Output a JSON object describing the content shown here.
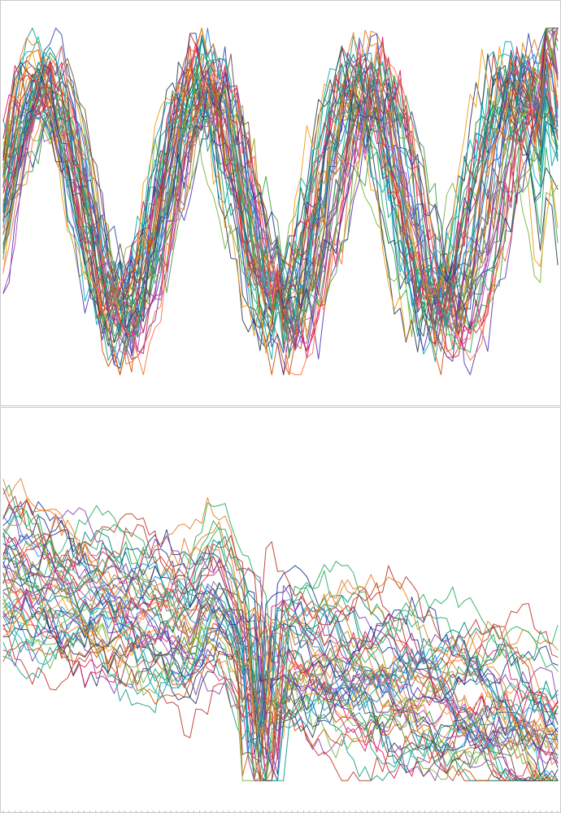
{
  "chart_data": [
    {
      "type": "line",
      "title": "",
      "xlabel": "",
      "ylabel": "",
      "grid": false,
      "legend": "none",
      "x_count": 96,
      "ylim": [
        0,
        100
      ],
      "series_count": 52,
      "pattern": "oscillating",
      "colors": [
        "#1f3a93",
        "#e67e22",
        "#27ae60",
        "#c0392b",
        "#8e44ad",
        "#16a085",
        "#d35400",
        "#2c3e50",
        "#e91e63",
        "#7cb342",
        "#00acc1",
        "#5e35b1",
        "#f39c12",
        "#6d4c41",
        "#43a047",
        "#3949ab",
        "#ff7043",
        "#26a69a",
        "#ab47bc",
        "#9e9d24",
        "#1e88e5",
        "#d81b60",
        "#00897b",
        "#8d6e63"
      ]
    },
    {
      "type": "line",
      "title": "",
      "xlabel": "",
      "ylabel": "",
      "grid": false,
      "legend": "none",
      "x_count": 96,
      "ylim": [
        0,
        100
      ],
      "series_count": 52,
      "pattern": "declining",
      "colors": [
        "#1f3a93",
        "#e67e22",
        "#27ae60",
        "#c0392b",
        "#8e44ad",
        "#16a085",
        "#d35400",
        "#2c3e50",
        "#e91e63",
        "#7cb342",
        "#00acc1",
        "#5e35b1",
        "#f39c12",
        "#6d4c41",
        "#43a047",
        "#3949ab",
        "#ff7043",
        "#26a69a",
        "#ab47bc",
        "#9e9d24",
        "#1e88e5",
        "#d81b60",
        "#00897b",
        "#8d6e63"
      ]
    }
  ]
}
